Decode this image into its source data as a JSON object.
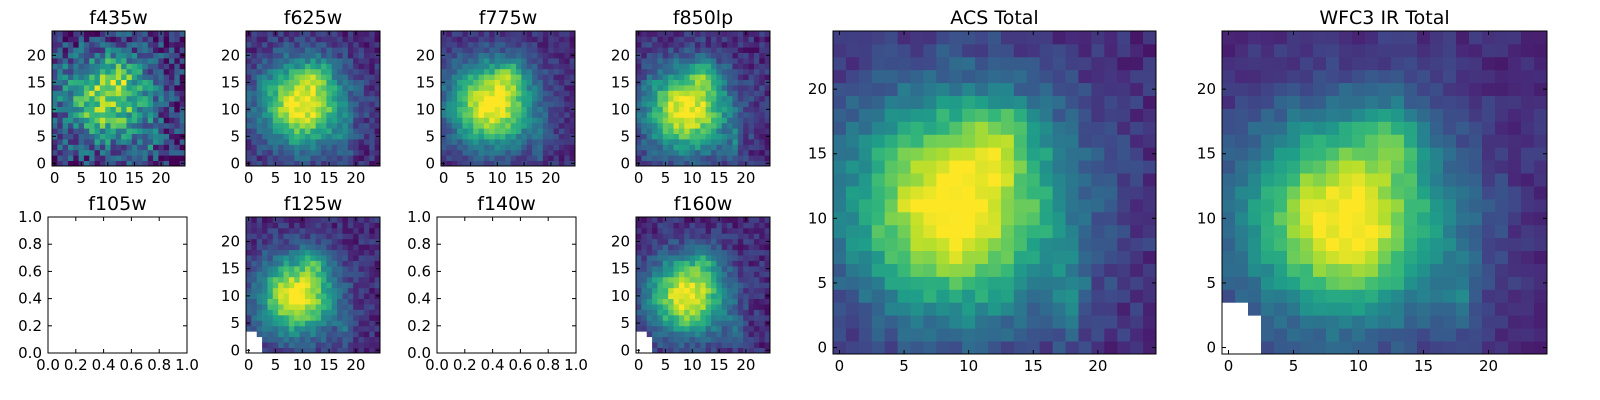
{
  "colormap": "viridis",
  "chart_data": [
    {
      "type": "heatmap",
      "title": "f435w",
      "xlim": [
        -0.5,
        24.5
      ],
      "ylim": [
        -0.5,
        24.5
      ],
      "xticks": [
        0,
        5,
        10,
        15,
        20
      ],
      "yticks": [
        0,
        5,
        10,
        15,
        20
      ],
      "grid": false,
      "peak": [
        10,
        12
      ],
      "spread": 6.0,
      "noise": 0.45,
      "level": 0.72,
      "blank_corner": false,
      "empty": false
    },
    {
      "type": "heatmap",
      "title": "f625w",
      "xlim": [
        -0.5,
        24.5
      ],
      "ylim": [
        -0.5,
        24.5
      ],
      "xticks": [
        0,
        5,
        10,
        15,
        20
      ],
      "yticks": [
        0,
        5,
        10,
        15,
        20
      ],
      "grid": false,
      "peak": [
        10,
        11
      ],
      "spread": 5.5,
      "noise": 0.22,
      "level": 0.9,
      "blank_corner": false,
      "empty": false
    },
    {
      "type": "heatmap",
      "title": "f775w",
      "xlim": [
        -0.5,
        24.5
      ],
      "ylim": [
        -0.5,
        24.5
      ],
      "xticks": [
        0,
        5,
        10,
        15,
        20
      ],
      "yticks": [
        0,
        5,
        10,
        15,
        20
      ],
      "grid": false,
      "peak": [
        9,
        11
      ],
      "spread": 5.5,
      "noise": 0.18,
      "level": 0.92,
      "blank_corner": false,
      "empty": false
    },
    {
      "type": "heatmap",
      "title": "f850lp",
      "xlim": [
        -0.5,
        24.5
      ],
      "ylim": [
        -0.5,
        24.5
      ],
      "xticks": [
        0,
        5,
        10,
        15,
        20
      ],
      "yticks": [
        0,
        5,
        10,
        15,
        20
      ],
      "grid": false,
      "peak": [
        9,
        10
      ],
      "spread": 5.5,
      "noise": 0.22,
      "level": 0.9,
      "blank_corner": false,
      "empty": false
    },
    {
      "type": "heatmap",
      "title": "ACS Total",
      "xlim": [
        -0.5,
        24.5
      ],
      "ylim": [
        -0.5,
        24.5
      ],
      "xticks": [
        0,
        5,
        10,
        15,
        20
      ],
      "yticks": [
        0,
        5,
        10,
        15,
        20
      ],
      "grid": false,
      "peak": [
        9,
        11
      ],
      "spread": 6.0,
      "noise": 0.15,
      "level": 0.95,
      "blank_corner": false,
      "empty": false
    },
    {
      "type": "heatmap",
      "title": "WFC3 IR Total",
      "xlim": [
        -0.5,
        24.5
      ],
      "ylim": [
        -0.5,
        24.5
      ],
      "xticks": [
        0,
        5,
        10,
        15,
        20
      ],
      "yticks": [
        0,
        5,
        10,
        15,
        20
      ],
      "grid": false,
      "peak": [
        9,
        10
      ],
      "spread": 5.5,
      "noise": 0.12,
      "level": 0.92,
      "blank_corner": true,
      "empty": false
    },
    {
      "type": "heatmap",
      "title": "f105w",
      "xlim": [
        0,
        1
      ],
      "ylim": [
        0,
        1
      ],
      "xticks": [
        "0.0",
        "0.2",
        "0.4",
        "0.6",
        "0.8",
        "1.0"
      ],
      "yticks": [
        "0.0",
        "0.2",
        "0.4",
        "0.6",
        "0.8",
        "1.0"
      ],
      "grid": false,
      "empty": true
    },
    {
      "type": "heatmap",
      "title": "f125w",
      "xlim": [
        -0.5,
        24.5
      ],
      "ylim": [
        -0.5,
        24.5
      ],
      "xticks": [
        0,
        5,
        10,
        15,
        20
      ],
      "yticks": [
        0,
        5,
        10,
        15,
        20
      ],
      "grid": false,
      "peak": [
        9,
        10
      ],
      "spread": 5.0,
      "noise": 0.2,
      "level": 0.9,
      "blank_corner": true,
      "empty": false
    },
    {
      "type": "heatmap",
      "title": "f140w",
      "xlim": [
        0,
        1
      ],
      "ylim": [
        0,
        1
      ],
      "xticks": [
        "0.0",
        "0.2",
        "0.4",
        "0.6",
        "0.8",
        "1.0"
      ],
      "yticks": [
        "0.0",
        "0.2",
        "0.4",
        "0.6",
        "0.8",
        "1.0"
      ],
      "grid": false,
      "empty": true
    },
    {
      "type": "heatmap",
      "title": "f160w",
      "xlim": [
        -0.5,
        24.5
      ],
      "ylim": [
        -0.5,
        24.5
      ],
      "xticks": [
        0,
        5,
        10,
        15,
        20
      ],
      "yticks": [
        0,
        5,
        10,
        15,
        20
      ],
      "grid": false,
      "peak": [
        9,
        10
      ],
      "spread": 5.0,
      "noise": 0.2,
      "level": 0.9,
      "blank_corner": true,
      "empty": false
    }
  ]
}
